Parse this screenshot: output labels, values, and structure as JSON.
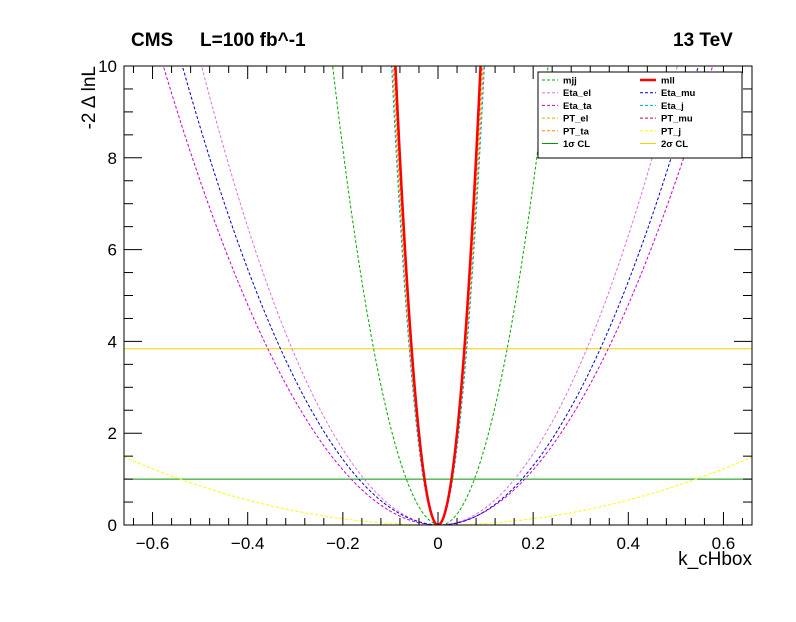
{
  "header": {
    "experiment": "CMS",
    "luminosity": "L=100 fb^-1",
    "energy": "13 TeV"
  },
  "chart_data": {
    "type": "line",
    "xlabel": "k_cHbox",
    "ylabel": "-2 Δ lnL",
    "xlim": [
      -0.66,
      0.66
    ],
    "ylim": [
      0,
      10
    ],
    "xticks": [
      -0.6,
      -0.4,
      -0.2,
      0,
      0.2,
      0.4,
      0.6
    ],
    "xtick_labels": [
      "−0.6",
      "−0.4",
      "−0.2",
      "0",
      "0.2",
      "0.4",
      "0.6"
    ],
    "yticks": [
      0,
      2,
      4,
      6,
      8,
      10
    ],
    "ytick_labels": [
      "0",
      "2",
      "4",
      "6",
      "8",
      "10"
    ],
    "grid": false,
    "legend_position": "top-right",
    "series": [
      {
        "name": "mjj",
        "color": "#00aa00",
        "style": "dashed",
        "curvature": 195,
        "center": 0.005
      },
      {
        "name": "mll",
        "color": "#ff0000",
        "style": "solid",
        "curvature": 1250,
        "center": 0.0
      },
      {
        "name": "Eta_el",
        "color": "#e070e0",
        "style": "dashed",
        "curvature": 40,
        "center": 0.003
      },
      {
        "name": "Eta_mu",
        "color": "#0000cc",
        "style": "dashed",
        "curvature": 34,
        "center": 0.005
      },
      {
        "name": "Eta_ta",
        "color": "#cc00cc",
        "style": "dashed",
        "curvature": 30,
        "center": 0.0
      },
      {
        "name": "Eta_j",
        "color": "#00aacc",
        "style": "dashed",
        "curvature": 1050,
        "center": 0.0
      },
      {
        "name": "PT_el",
        "color": "#ffaa00",
        "style": "dashed",
        "curvature": 1150,
        "center": 0.0
      },
      {
        "name": "PT_mu",
        "color": "#cc0044",
        "style": "dashed",
        "curvature": 1200,
        "center": 0.0
      },
      {
        "name": "PT_ta",
        "color": "#ff8800",
        "style": "dashed",
        "curvature": 1100,
        "center": 0.0
      },
      {
        "name": "PT_j",
        "color": "#ffff00",
        "style": "dashed",
        "curvature": 3.4,
        "center": 0.0
      }
    ],
    "reference_lines": [
      {
        "name": "1σ CL",
        "y": 1.0,
        "color": "#009900"
      },
      {
        "name": "2σ CL",
        "y": 3.84,
        "color": "#ffcc00"
      }
    ],
    "legend_order": [
      "mjj",
      "mll",
      "Eta_el",
      "Eta_mu",
      "Eta_ta",
      "Eta_j",
      "PT_el",
      "PT_mu",
      "PT_ta",
      "PT_j",
      "1σ CL",
      "2σ CL"
    ]
  }
}
